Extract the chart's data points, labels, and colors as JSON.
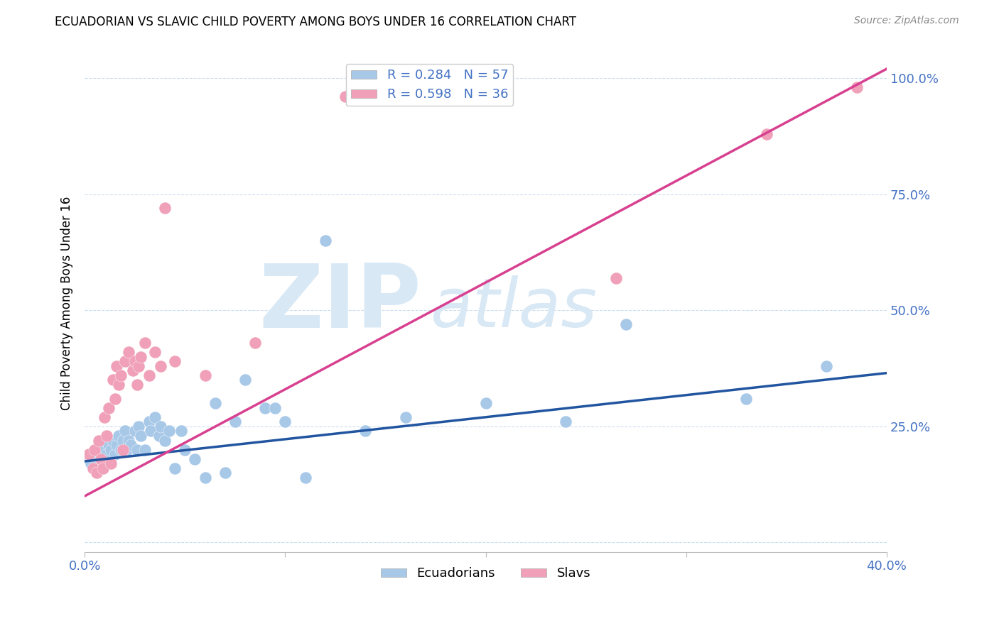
{
  "title": "ECUADORIAN VS SLAVIC CHILD POVERTY AMONG BOYS UNDER 16 CORRELATION CHART",
  "source": "Source: ZipAtlas.com",
  "ylabel": "Child Poverty Among Boys Under 16",
  "xlim": [
    0.0,
    0.4
  ],
  "ylim": [
    -0.02,
    1.05
  ],
  "y_ticks": [
    0.0,
    0.25,
    0.5,
    0.75,
    1.0
  ],
  "y_tick_labels": [
    "",
    "25.0%",
    "50.0%",
    "75.0%",
    "100.0%"
  ],
  "x_ticks": [
    0.0,
    0.1,
    0.2,
    0.3,
    0.4
  ],
  "x_tick_labels": [
    "0.0%",
    "",
    "",
    "",
    "40.0%"
  ],
  "legend_blue_text": "R = 0.284   N = 57",
  "legend_pink_text": "R = 0.598   N = 36",
  "ecuadorians_color": "#a8c8e8",
  "slavs_color": "#f0a0b8",
  "blue_line_color": "#2255a0",
  "pink_line_color": "#d84090",
  "watermark_color": "#d8e8f5",
  "blue_trend_x": [
    0.0,
    0.4
  ],
  "blue_trend_y": [
    0.175,
    0.365
  ],
  "pink_trend_x": [
    0.0,
    0.4
  ],
  "pink_trend_y": [
    0.1,
    1.02
  ],
  "ecuadorians_x": [
    0.002,
    0.003,
    0.004,
    0.005,
    0.006,
    0.007,
    0.007,
    0.008,
    0.008,
    0.009,
    0.01,
    0.011,
    0.012,
    0.013,
    0.014,
    0.015,
    0.016,
    0.017,
    0.018,
    0.019,
    0.02,
    0.021,
    0.022,
    0.023,
    0.025,
    0.026,
    0.027,
    0.028,
    0.03,
    0.032,
    0.033,
    0.035,
    0.037,
    0.038,
    0.04,
    0.042,
    0.045,
    0.048,
    0.05,
    0.055,
    0.06,
    0.065,
    0.07,
    0.075,
    0.08,
    0.09,
    0.095,
    0.1,
    0.11,
    0.12,
    0.14,
    0.16,
    0.2,
    0.24,
    0.27,
    0.33,
    0.37
  ],
  "ecuadorians_y": [
    0.18,
    0.17,
    0.19,
    0.16,
    0.2,
    0.21,
    0.18,
    0.22,
    0.19,
    0.17,
    0.2,
    0.19,
    0.21,
    0.2,
    0.22,
    0.19,
    0.21,
    0.23,
    0.2,
    0.22,
    0.24,
    0.2,
    0.22,
    0.21,
    0.24,
    0.2,
    0.25,
    0.23,
    0.2,
    0.26,
    0.24,
    0.27,
    0.23,
    0.25,
    0.22,
    0.24,
    0.16,
    0.24,
    0.2,
    0.18,
    0.14,
    0.3,
    0.15,
    0.26,
    0.35,
    0.29,
    0.29,
    0.26,
    0.14,
    0.65,
    0.24,
    0.27,
    0.3,
    0.26,
    0.47,
    0.31,
    0.38
  ],
  "slavs_x": [
    0.002,
    0.004,
    0.005,
    0.006,
    0.007,
    0.008,
    0.009,
    0.01,
    0.011,
    0.012,
    0.013,
    0.014,
    0.015,
    0.016,
    0.017,
    0.018,
    0.019,
    0.02,
    0.022,
    0.024,
    0.025,
    0.026,
    0.027,
    0.028,
    0.03,
    0.032,
    0.035,
    0.038,
    0.04,
    0.045,
    0.06,
    0.085,
    0.13,
    0.265,
    0.34,
    0.385
  ],
  "slavs_y": [
    0.19,
    0.16,
    0.2,
    0.15,
    0.22,
    0.18,
    0.16,
    0.27,
    0.23,
    0.29,
    0.17,
    0.35,
    0.31,
    0.38,
    0.34,
    0.36,
    0.2,
    0.39,
    0.41,
    0.37,
    0.39,
    0.34,
    0.38,
    0.4,
    0.43,
    0.36,
    0.41,
    0.38,
    0.72,
    0.39,
    0.36,
    0.43,
    0.96,
    0.57,
    0.88,
    0.98
  ]
}
